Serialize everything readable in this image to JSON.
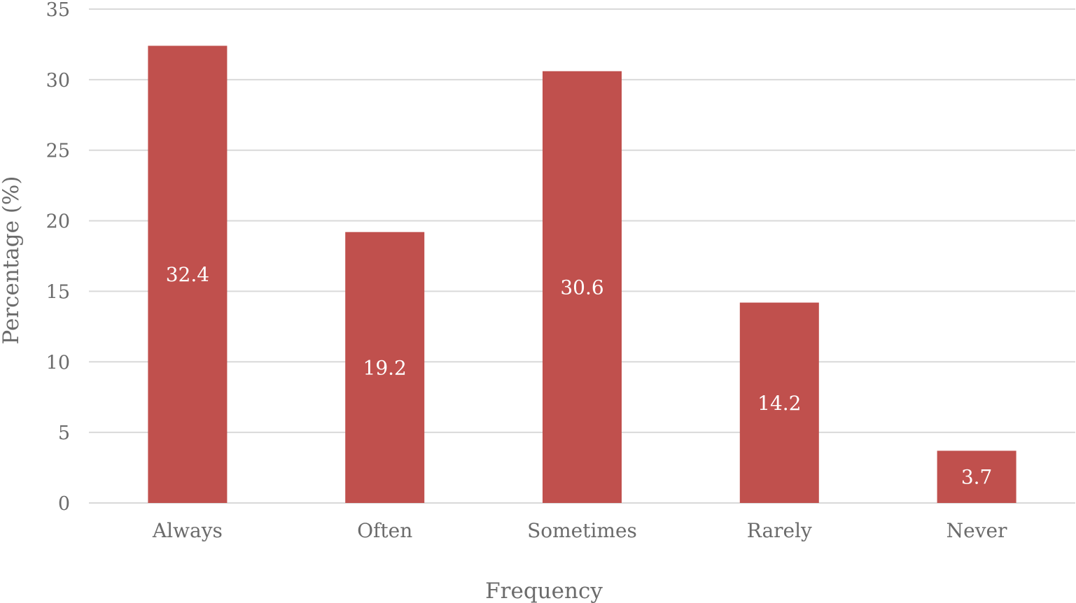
{
  "chart_data": {
    "type": "bar",
    "categories": [
      "Always",
      "Often",
      "Sometimes",
      "Rarely",
      "Never"
    ],
    "values": [
      32.4,
      19.2,
      30.6,
      14.2,
      3.7
    ],
    "data_labels": [
      "32.4",
      "19.2",
      "30.6",
      "14.2",
      "3.7"
    ],
    "title": "",
    "xlabel": "Frequency",
    "ylabel": "Percentage (%)",
    "ylim": [
      0,
      35
    ],
    "yticks": [
      0,
      5,
      10,
      15,
      20,
      25,
      30,
      35
    ],
    "ytick_labels": [
      "0",
      "5",
      "10",
      "15",
      "20",
      "25",
      "30",
      "35"
    ],
    "grid": true,
    "legend": "none",
    "bar_color": "#c0504d",
    "grid_color": "#d9d9d9",
    "text_color": "#6b6b6b",
    "data_label_color": "#ffffff"
  }
}
